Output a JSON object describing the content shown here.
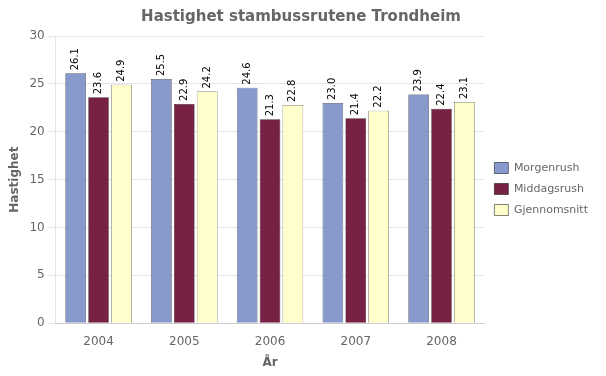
{
  "chart_data": {
    "type": "bar",
    "title": "Hastighet stambussrutene Trondheim",
    "xlabel": "År",
    "ylabel": "Hastighet",
    "categories": [
      "2004",
      "2005",
      "2006",
      "2007",
      "2008"
    ],
    "series": [
      {
        "name": "Morgenrush",
        "color": "#8899CC",
        "values": [
          26.1,
          25.5,
          24.6,
          23.0,
          23.9
        ],
        "value_labels": [
          "26.1",
          "25.5",
          "24.6",
          "23.0",
          "23.9"
        ]
      },
      {
        "name": "Middagsrush",
        "color": "#772244",
        "values": [
          23.6,
          22.9,
          21.3,
          21.4,
          22.4
        ]
      },
      {
        "name": "Gjennomsnitt",
        "color": "#FFFFCC",
        "values": [
          24.9,
          24.2,
          22.8,
          22.2,
          23.1
        ]
      }
    ],
    "ylim": [
      0,
      30
    ],
    "yticks": [
      0,
      5,
      10,
      15,
      20,
      25,
      30
    ],
    "grid": true,
    "legend": "right",
    "data_labels": true
  }
}
